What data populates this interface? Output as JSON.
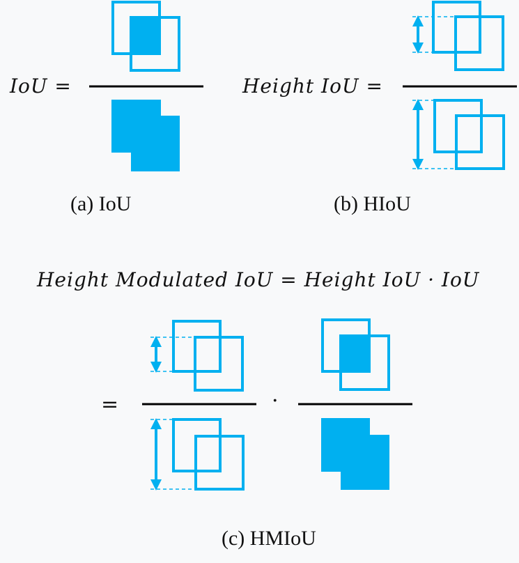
{
  "colors": {
    "accent": "#00b0f0",
    "ink": "#000000",
    "background": "#f8f9fa"
  },
  "panel_a": {
    "formula_lhs": "IoU =",
    "caption": "(a) IoU"
  },
  "panel_b": {
    "formula_lhs": "Height IoU =",
    "caption": "(b) HIoU"
  },
  "panel_c": {
    "equation": "Height Modulated IoU = Height IoU  · IoU",
    "equals": "=",
    "dot": "·",
    "caption": "(c) HMIoU"
  }
}
